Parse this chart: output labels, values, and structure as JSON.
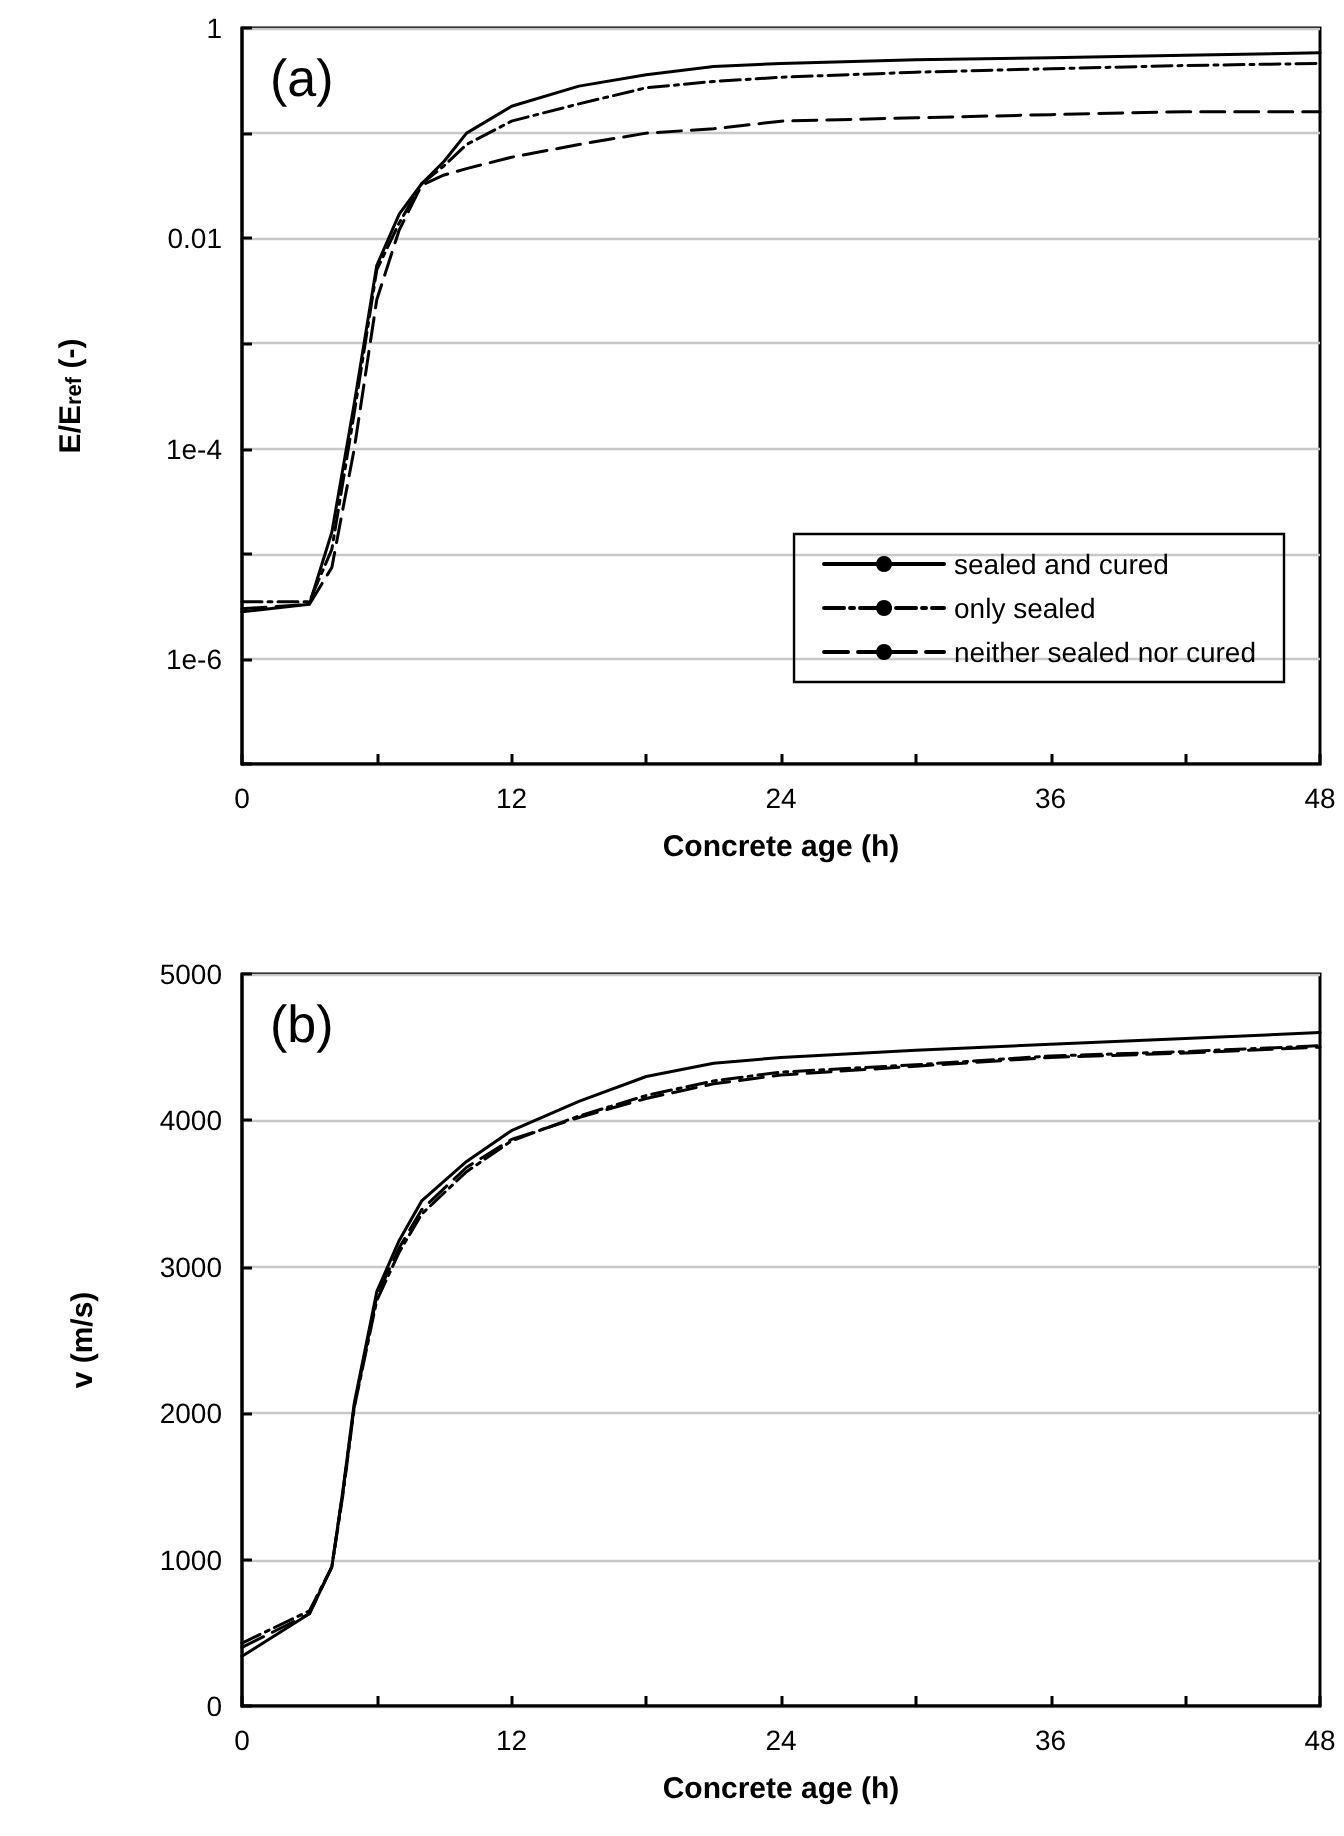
{
  "chart_data": [
    {
      "type": "line",
      "xlabel": "Concrete age (h)",
      "ylabel": "E/E$_{ref}$ (-)",
      "annotations": [
        "(a)"
      ],
      "log": "y",
      "grid": "y",
      "legend": "bottom right",
      "marker": "none",
      "xlim": [
        0,
        48
      ],
      "xticks": [
        0,
        {
          "value": 6,
          "label": null
        },
        12,
        {
          "value": 18,
          "label": null
        },
        24,
        {
          "value": 30,
          "label": null
        },
        36,
        {
          "value": 42,
          "label": null
        },
        48
      ],
      "ylim": [
        1e-07,
        1
      ],
      "yticks": [
        {
          "value": 1e-07,
          "label": null
        },
        "1e-6",
        {
          "value": 1e-05,
          "label": null
        },
        {
          "value": 0.0001,
          "label": "1e-4"
        },
        {
          "value": 0.001,
          "label": null
        },
        0.01,
        {
          "value": 0.1,
          "label": null
        },
        1
      ],
      "x": [
        0,
        3,
        4,
        5,
        6,
        7,
        8,
        9,
        10,
        12,
        15,
        18,
        21,
        24,
        30,
        36,
        42,
        48
      ],
      "series": [
        {
          "name": "sealed and cured",
          "color": "#000000",
          "line_style": "solid",
          "values": [
            2.8e-06,
            3.3e-06,
            1.6e-05,
            0.00027,
            0.0055,
            0.017,
            0.033,
            0.054,
            0.1,
            0.18,
            0.28,
            0.36,
            0.43,
            0.46,
            0.5,
            0.52,
            0.55,
            0.58
          ]
        },
        {
          "name": "only sealed",
          "color": "#000000",
          "line_style": "dashdot",
          "values": [
            3.5e-06,
            3.5e-06,
            1.1e-05,
            0.00022,
            0.005,
            0.014,
            0.033,
            0.049,
            0.078,
            0.13,
            0.19,
            0.27,
            0.31,
            0.34,
            0.38,
            0.41,
            0.44,
            0.46
          ]
        },
        {
          "name": "neither sealed nor cured",
          "color": "#000000",
          "line_style": "dashed",
          "values": [
            3e-06,
            3.3e-06,
            7.4e-06,
            0.0001,
            0.0026,
            0.012,
            0.032,
            0.04,
            0.046,
            0.059,
            0.078,
            0.1,
            0.11,
            0.13,
            0.14,
            0.15,
            0.16,
            0.16
          ]
        }
      ]
    },
    {
      "type": "line",
      "xlabel": "Concrete age (h)",
      "ylabel": "v (m/s)",
      "annotations": [
        "(b)"
      ],
      "grid": "y",
      "legend": false,
      "marker": "none",
      "xlim": [
        0,
        48
      ],
      "xticks": [
        0,
        {
          "value": 6,
          "label": null
        },
        12,
        {
          "value": 18,
          "label": null
        },
        24,
        {
          "value": 30,
          "label": null
        },
        36,
        {
          "value": 42,
          "label": null
        },
        48
      ],
      "ylim": [
        0,
        5000
      ],
      "yticks": [
        0,
        1000,
        2000,
        3000,
        4000,
        5000
      ],
      "x": [
        0,
        3,
        4,
        4.5,
        5,
        6,
        7,
        8,
        10,
        12,
        15,
        18,
        21,
        24,
        30,
        36,
        42,
        48
      ],
      "series": [
        {
          "color": "#000000",
          "line_style": "solid",
          "values": [
            340,
            630,
            950,
            1480,
            2070,
            2830,
            3180,
            3450,
            3720,
            3930,
            4130,
            4300,
            4390,
            4430,
            4480,
            4520,
            4560,
            4600
          ]
        },
        {
          "color": "#000000",
          "line_style": "dashdot",
          "values": [
            430,
            650,
            950,
            1450,
            2040,
            2770,
            3100,
            3360,
            3650,
            3860,
            4030,
            4170,
            4270,
            4330,
            4380,
            4440,
            4470,
            4510
          ]
        },
        {
          "color": "#000000",
          "line_style": "dashed",
          "values": [
            400,
            630,
            950,
            1470,
            2050,
            2800,
            3130,
            3390,
            3680,
            3870,
            4020,
            4150,
            4250,
            4310,
            4370,
            4430,
            4460,
            4500
          ]
        }
      ]
    }
  ]
}
